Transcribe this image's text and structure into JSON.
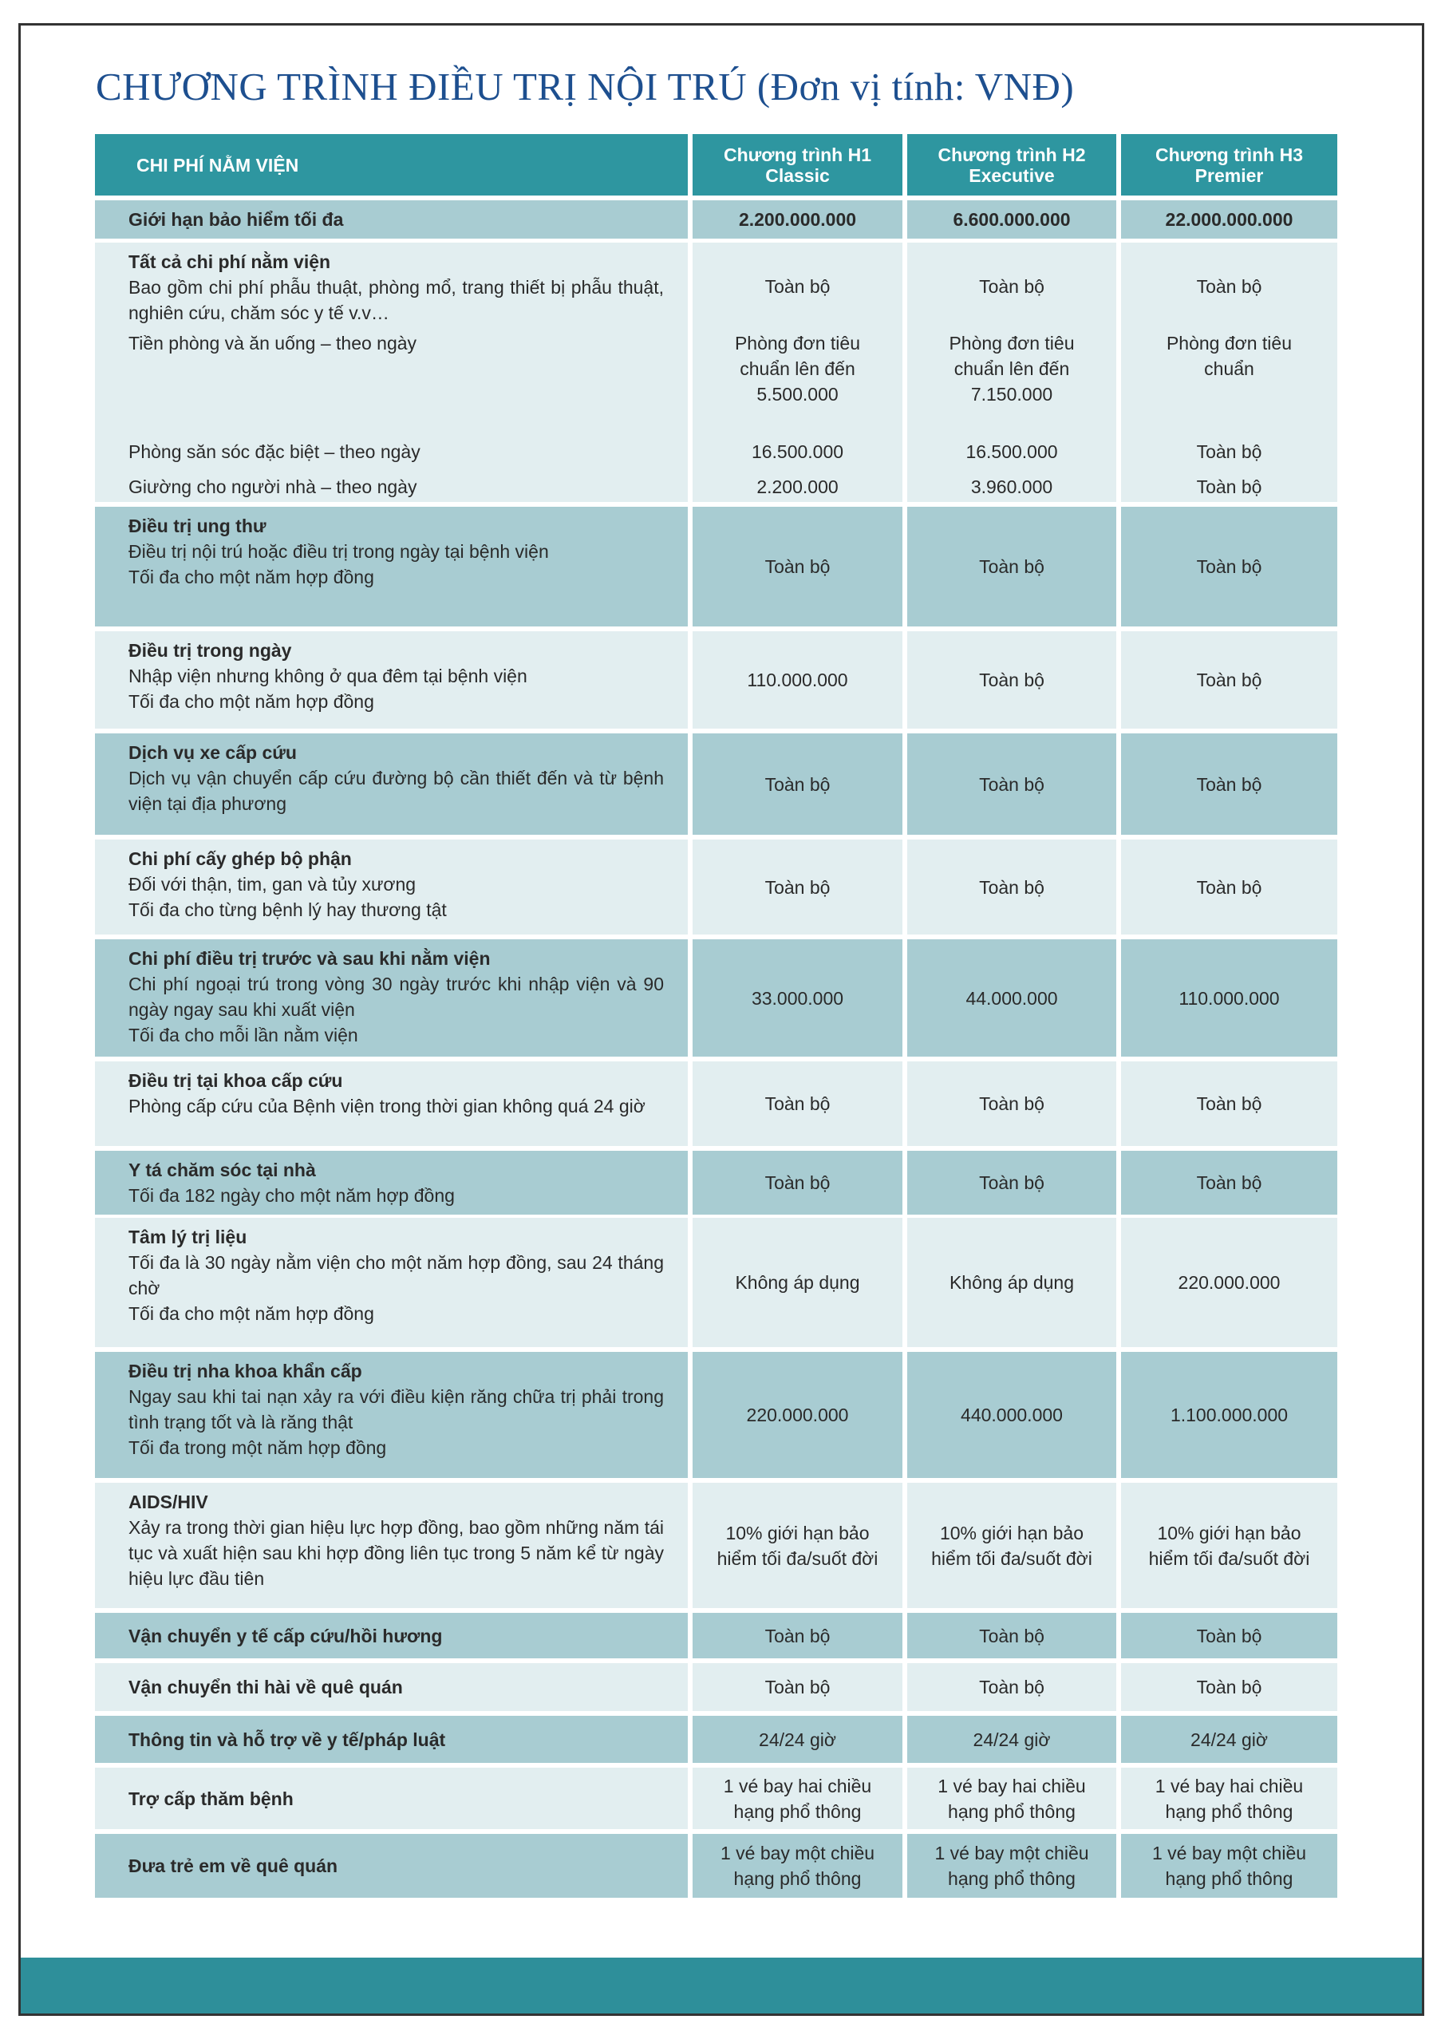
{
  "title": "CHƯƠNG TRÌNH ĐIỀU TRỊ NỘI TRÚ (Đơn vị tính: VNĐ)",
  "table": {
    "header": {
      "label": "CHI PHÍ NẰM VIỆN",
      "plans": [
        {
          "name": "Chương trình H1",
          "tier": "Classic"
        },
        {
          "name": "Chương trình H2",
          "tier": "Executive"
        },
        {
          "name": "Chương trình H3",
          "tier": "Premier"
        }
      ]
    },
    "rows": [
      {
        "title": "Giới hạn bảo hiểm tối đa",
        "values": [
          "2.200.000.000",
          "6.600.000.000",
          "22.000.000.000"
        ]
      },
      {
        "title": "Tất cả chi phí nằm viện",
        "lines": [
          "Bao gồm chi phí phẫu thuật, phòng mổ, trang thiết bị phẫu thuật, nghiên cứu, chăm sóc y tế v.v…"
        ],
        "values": [
          "Toàn bộ",
          "Toàn bộ",
          "Toàn bộ"
        ],
        "items": [
          {
            "label": "Tiền phòng và ăn uống – theo ngày",
            "values": [
              "Phòng đơn tiêu chuẩn lên đến 5.500.000",
              "Phòng đơn tiêu chuẩn lên đến 7.150.000",
              "Phòng đơn tiêu chuẩn"
            ]
          },
          {
            "label": "Phòng săn sóc đặc biệt – theo ngày",
            "values": [
              "16.500.000",
              "16.500.000",
              "Toàn bộ"
            ]
          },
          {
            "label": "Giường cho người nhà – theo ngày",
            "values": [
              "2.200.000",
              "3.960.000",
              "Toàn bộ"
            ]
          }
        ]
      },
      {
        "title": "Điều trị ung thư",
        "lines": [
          "Điều trị nội trú hoặc điều trị trong ngày tại bệnh viện",
          "Tối đa cho một năm hợp đồng"
        ],
        "values": [
          "Toàn bộ",
          "Toàn bộ",
          "Toàn bộ"
        ]
      },
      {
        "title": "Điều trị trong ngày",
        "lines": [
          "Nhập viện nhưng không ở qua đêm tại bệnh viện",
          "Tối đa cho một năm hợp đồng"
        ],
        "values": [
          "110.000.000",
          "Toàn bộ",
          "Toàn bộ"
        ]
      },
      {
        "title": "Dịch vụ xe cấp cứu",
        "lines": [
          "Dịch vụ vận chuyển cấp cứu đường bộ cần thiết đến và từ bệnh viện tại địa phương"
        ],
        "values": [
          "Toàn bộ",
          "Toàn bộ",
          "Toàn bộ"
        ]
      },
      {
        "title": "Chi phí cấy ghép bộ phận",
        "lines": [
          "Đối với thận, tim, gan và tủy xương",
          "Tối đa cho từng bệnh lý hay thương tật"
        ],
        "values": [
          "Toàn bộ",
          "Toàn bộ",
          "Toàn bộ"
        ]
      },
      {
        "title": "Chi phí điều trị trước và sau khi nằm viện",
        "lines": [
          "Chi phí ngoại trú trong vòng 30 ngày trước khi nhập viện và 90 ngày ngay sau khi xuất viện",
          "Tối đa cho mỗi lần nằm viện"
        ],
        "values": [
          "33.000.000",
          "44.000.000",
          "110.000.000"
        ]
      },
      {
        "title": "Điều trị tại khoa cấp cứu",
        "lines": [
          "Phòng cấp cứu của Bệnh viện trong thời gian không quá 24 giờ"
        ],
        "values": [
          "Toàn bộ",
          "Toàn bộ",
          "Toàn bộ"
        ]
      },
      {
        "title": "Y tá chăm sóc tại nhà",
        "lines": [
          "Tối đa 182 ngày cho một năm hợp đồng"
        ],
        "values": [
          "Toàn bộ",
          "Toàn bộ",
          "Toàn bộ"
        ]
      },
      {
        "title": "Tâm lý trị liệu",
        "lines": [
          "Tối đa là 30 ngày nằm viện cho một năm hợp đồng, sau 24 tháng chờ",
          "Tối đa cho một năm hợp đồng"
        ],
        "values": [
          "Không áp dụng",
          "Không áp dụng",
          "220.000.000"
        ]
      },
      {
        "title": "Điều trị nha khoa khẩn cấp",
        "lines": [
          "Ngay sau khi tai nạn xảy ra với điều kiện răng chữa trị phải trong tình trạng tốt và là răng thật",
          "Tối đa trong một năm hợp đồng"
        ],
        "values": [
          "220.000.000",
          "440.000.000",
          "1.100.000.000"
        ]
      },
      {
        "title": "AIDS/HIV",
        "lines": [
          "Xảy ra trong thời gian hiệu lực hợp đồng, bao gồm những năm tái tục và xuất hiện sau khi hợp đồng liên tục trong 5 năm kể từ ngày hiệu lực đầu tiên"
        ],
        "values": [
          "10% giới hạn bảo hiểm tối đa/suốt đời",
          "10% giới hạn bảo hiểm tối đa/suốt đời",
          "10% giới hạn bảo hiểm tối đa/suốt đời"
        ]
      },
      {
        "title": "Vận chuyển y tế cấp cứu/hồi hương",
        "values": [
          "Toàn bộ",
          "Toàn bộ",
          "Toàn bộ"
        ]
      },
      {
        "title": "Vận chuyển thi hài về quê quán",
        "values": [
          "Toàn bộ",
          "Toàn bộ",
          "Toàn bộ"
        ]
      },
      {
        "title": "Thông tin và hỗ trợ về y tế/pháp luật",
        "values": [
          "24/24 giờ",
          "24/24 giờ",
          "24/24 giờ"
        ]
      },
      {
        "title": "Trợ cấp thăm bệnh",
        "values": [
          "1 vé bay hai chiều hạng phổ thông",
          "1 vé bay hai chiều hạng phổ thông",
          "1 vé bay hai chiều hạng phổ thông"
        ]
      },
      {
        "title": "Đưa trẻ em về quê quán",
        "values": [
          "1 vé bay một chiều hạng phổ thông",
          "1 vé bay một chiều hạng phổ thông",
          "1 vé bay một chiều hạng phổ thông"
        ]
      }
    ]
  }
}
